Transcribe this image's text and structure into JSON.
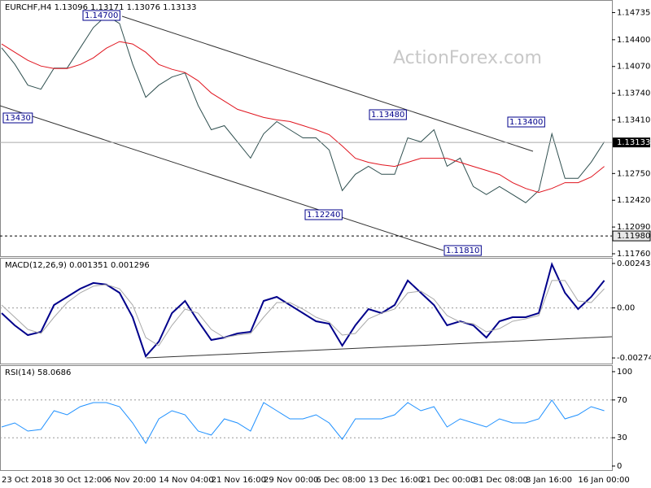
{
  "chart_data": [
    {
      "type": "line",
      "title": "EURCHF,H4 1.13096 1.13171 1.13076 1.13133",
      "watermark": "ActionForex.com",
      "series": [
        {
          "color": "#2f4f4f",
          "values": [
            1.143,
            1.141,
            1.1384,
            1.1379,
            1.1405,
            1.1405,
            1.143,
            1.1455,
            1.147,
            1.146,
            1.141,
            1.1369,
            1.1384,
            1.1394,
            1.1399,
            1.1359,
            1.1329,
            1.1334,
            1.1314,
            1.1294,
            1.1324,
            1.1339,
            1.1329,
            1.1319,
            1.1319,
            1.1304,
            1.1254,
            1.1274,
            1.1284,
            1.1274,
            1.1274,
            1.1319,
            1.1314,
            1.1329,
            1.1284,
            1.1294,
            1.1259,
            1.1249,
            1.1259,
            1.1249,
            1.1239,
            1.1254,
            1.1324,
            1.1269,
            1.1269,
            1.1289,
            1.1314
          ]
        },
        {
          "color": "#e0141e",
          "values": [
            1.14347,
            1.14246,
            1.14146,
            1.14075,
            1.14045,
            1.14045,
            1.14095,
            1.14176,
            1.14296,
            1.14377,
            1.14347,
            1.14246,
            1.14095,
            1.14035,
            1.13995,
            1.13894,
            1.13743,
            1.13643,
            1.13542,
            1.13492,
            1.13441,
            1.13411,
            1.13391,
            1.13341,
            1.1329,
            1.1323,
            1.13089,
            1.12938,
            1.12888,
            1.12858,
            1.12838,
            1.12888,
            1.12938,
            1.12938,
            1.12938,
            1.12888,
            1.12838,
            1.12788,
            1.12737,
            1.12637,
            1.12566,
            1.12516,
            1.12566,
            1.12637,
            1.12637,
            1.12707,
            1.12838
          ]
        }
      ],
      "ylim": [
        1.1173,
        1.1488
      ],
      "yticks": [
        1.14735,
        {
          "value": 1.144,
          "label": "1.14400"
        },
        {
          "value": 1.1407,
          "label": "1.14070"
        },
        {
          "value": 1.1374,
          "label": "1.13740"
        },
        {
          "value": 1.1341,
          "label": "1.13410"
        },
        {
          "value": 1.1275,
          "label": "1.12750"
        },
        {
          "value": 1.1242,
          "label": "1.12420"
        },
        {
          "value": 1.1209,
          "label": "1.12090"
        },
        {
          "value": 1.1176,
          "label": "1.11760"
        }
      ],
      "last_price": 1.13133,
      "level_line": {
        "value": 1.1198,
        "label": "1.11980"
      },
      "annotations": [
        "1.14700",
        "13430",
        "1.13480",
        "1.12240",
        "1.11810",
        "1.13400"
      ]
    },
    {
      "type": "line",
      "title": "MACD(12,26,9) 0.001351 0.001296",
      "series": [
        {
          "color": "#00008b",
          "values": [
            -0.000286,
            -0.000955,
            -0.001491,
            -0.001312,
            0.000161,
            0.000607,
            0.001053,
            0.001366,
            0.001277,
            0.00083,
            -0.000509,
            -0.002651,
            -0.001848,
            -0.000286,
            0.000384,
            -0.000732,
            -0.001759,
            -0.001625,
            -0.001402,
            -0.001312,
            0.000384,
            0.000607,
            0.000161,
            -0.000286,
            -0.000732,
            -0.000866,
            -0.002071,
            -0.000955,
            -6.2e-05,
            -0.000286,
            0.000161,
            0.0015,
            0.00083,
            0.000161,
            -0.000955,
            -0.000732,
            -0.000955,
            -0.001625,
            -0.000732,
            -0.000509,
            -0.000509,
            -0.000286,
            0.002393,
            0.00083,
            -6.2e-05,
            0.000607,
            0.0015
          ]
        },
        {
          "color": "#a9a9a9",
          "values": [
            0.000161,
            -0.000509,
            -0.001178,
            -0.001402,
            -0.000509,
            0.000295,
            0.00083,
            0.001187,
            0.001277,
            0.001053,
            0.000161,
            -0.001625,
            -0.002071,
            -0.000955,
            -6.2e-05,
            -0.000286,
            -0.001178,
            -0.001625,
            -0.001491,
            -0.001402,
            -0.000509,
            0.000295,
            0.000295,
            -6.2e-05,
            -0.000509,
            -0.000777,
            -0.001491,
            -0.001402,
            -0.000598,
            -0.000286,
            -6.2e-05,
            0.00083,
            0.00092,
            0.000473,
            -0.00042,
            -0.000777,
            -0.000866,
            -0.001312,
            -0.001134,
            -0.000732,
            -0.000598,
            -0.00042,
            0.0015,
            0.0015,
            0.000384,
            0.000295,
            0.001053
          ]
        }
      ],
      "ylim": [
        -0.00305,
        0.0027
      ],
      "yticks": [
        0.002436,
        {
          "value": 0,
          "label": "0.00"
        },
        -0.002742
      ],
      "levels": [
        0
      ]
    },
    {
      "type": "line",
      "title": "RSI(14) 58.0686",
      "categories": [
        "23 Oct 2018",
        null,
        null,
        null,
        "30 Oct 12:00",
        null,
        null,
        null,
        "6 Nov 20:00",
        null,
        null,
        null,
        "14 Nov 04:00",
        null,
        null,
        null,
        "21 Nov 16:00",
        null,
        null,
        null,
        "29 Nov 00:00",
        null,
        null,
        null,
        "6 Dec 08:00",
        null,
        null,
        null,
        "13 Dec 16:00",
        null,
        null,
        null,
        "21 Dec 00:00",
        null,
        null,
        null,
        "31 Dec 08:00",
        null,
        null,
        null,
        "8 Jan 16:00",
        null,
        null,
        null,
        "16 Jan 00:00",
        null,
        null
      ],
      "series": [
        {
          "color": "#1e90ff",
          "values": [
            41.4,
            45.7,
            37.1,
            38.8,
            58.6,
            54.3,
            62.9,
            67.2,
            67.2,
            62.9,
            45.7,
            24.1,
            50.0,
            58.6,
            54.3,
            37.1,
            32.8,
            50.0,
            45.7,
            37.1,
            67.2,
            58.6,
            50.0,
            50.0,
            54.3,
            45.7,
            28.4,
            50.0,
            50.0,
            50.0,
            54.3,
            67.2,
            58.6,
            62.9,
            41.4,
            50.0,
            45.7,
            41.4,
            50.0,
            45.7,
            45.7,
            50.0,
            69.8,
            50.0,
            54.3,
            62.9,
            58.6
          ]
        }
      ],
      "ylim": [
        -4.3,
        106
      ],
      "yticks": [
        0,
        30,
        70,
        100
      ],
      "levels": [
        30,
        70
      ]
    }
  ]
}
